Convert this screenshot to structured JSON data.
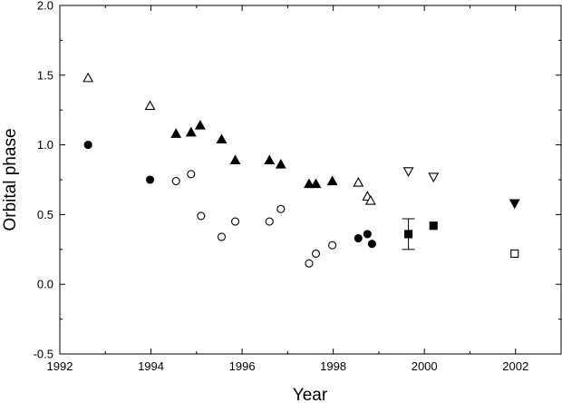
{
  "chart_data": {
    "type": "scatter",
    "xlabel": "Year",
    "ylabel": "Orbital phase",
    "xlim": [
      1992,
      2003
    ],
    "ylim": [
      -0.5,
      2.0
    ],
    "x_ticks": [
      "1992",
      "1994",
      "1996",
      "1998",
      "2000",
      "2002"
    ],
    "y_ticks": [
      "-0.5",
      "0.0",
      "0.5",
      "1.0",
      "1.5",
      "2.0"
    ],
    "grid": false,
    "series": [
      {
        "marker": "circle-filled",
        "color": "#000000",
        "points": [
          [
            1992.62,
            1.0
          ],
          [
            1993.98,
            0.75
          ],
          [
            1998.55,
            0.33
          ],
          [
            1998.75,
            0.36
          ],
          [
            1998.85,
            0.29
          ]
        ]
      },
      {
        "marker": "circle-open",
        "color": "#000000",
        "points": [
          [
            1994.55,
            0.74
          ],
          [
            1994.88,
            0.79
          ],
          [
            1995.1,
            0.49
          ],
          [
            1995.55,
            0.34
          ],
          [
            1995.85,
            0.45
          ],
          [
            1996.6,
            0.45
          ],
          [
            1996.85,
            0.54
          ],
          [
            1997.47,
            0.15
          ],
          [
            1997.62,
            0.22
          ],
          [
            1997.98,
            0.28
          ]
        ]
      },
      {
        "marker": "triangle-up-open",
        "color": "#000000",
        "points": [
          [
            1992.62,
            1.48
          ],
          [
            1993.98,
            1.28
          ],
          [
            1998.55,
            0.73
          ],
          [
            1998.75,
            0.63
          ],
          [
            1998.82,
            0.6
          ]
        ]
      },
      {
        "marker": "triangle-up-filled",
        "color": "#000000",
        "points": [
          [
            1994.55,
            1.08
          ],
          [
            1994.88,
            1.09
          ],
          [
            1995.08,
            1.14
          ],
          [
            1995.55,
            1.04
          ],
          [
            1995.85,
            0.89
          ],
          [
            1996.6,
            0.89
          ],
          [
            1996.85,
            0.86
          ],
          [
            1997.47,
            0.72
          ],
          [
            1997.62,
            0.72
          ],
          [
            1997.98,
            0.74
          ]
        ]
      },
      {
        "marker": "triangle-down-open",
        "color": "#000000",
        "points": [
          [
            1999.65,
            0.81
          ],
          [
            2000.2,
            0.77
          ]
        ]
      },
      {
        "marker": "triangle-down-filled",
        "color": "#000000",
        "points": [
          [
            2001.98,
            0.58
          ]
        ]
      },
      {
        "marker": "square-filled",
        "color": "#000000",
        "points": [
          [
            1999.65,
            0.36
          ],
          [
            2000.2,
            0.42
          ]
        ],
        "errors": [
          0.11,
          null
        ]
      },
      {
        "marker": "square-open",
        "color": "#000000",
        "points": [
          [
            2001.98,
            0.22
          ]
        ]
      }
    ]
  }
}
